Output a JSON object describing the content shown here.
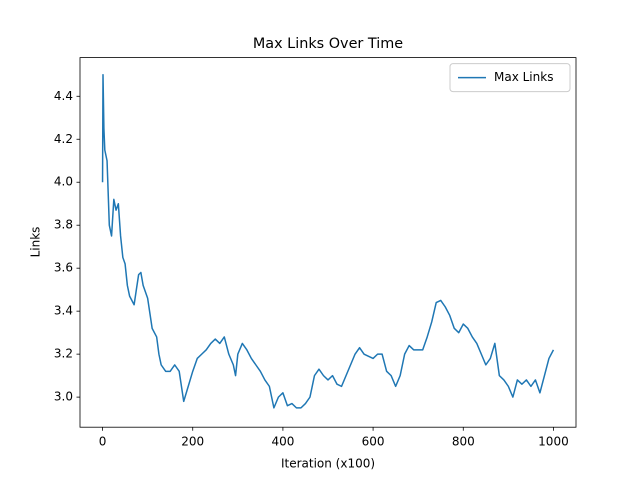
{
  "chart_data": {
    "type": "line",
    "title": "Max Links Over Time",
    "xlabel": "Iteration (x100)",
    "ylabel": "Links",
    "x": [
      0,
      1,
      3,
      5,
      10,
      15,
      20,
      25,
      30,
      35,
      40,
      45,
      50,
      55,
      60,
      70,
      75,
      80,
      85,
      90,
      100,
      110,
      120,
      125,
      130,
      140,
      150,
      160,
      170,
      175,
      180,
      190,
      200,
      210,
      220,
      230,
      240,
      250,
      260,
      270,
      280,
      290,
      295,
      300,
      310,
      320,
      330,
      340,
      350,
      360,
      370,
      380,
      390,
      400,
      410,
      420,
      430,
      440,
      450,
      460,
      470,
      480,
      490,
      500,
      510,
      520,
      530,
      540,
      550,
      560,
      570,
      580,
      590,
      600,
      610,
      620,
      630,
      640,
      650,
      660,
      670,
      680,
      690,
      700,
      710,
      720,
      730,
      740,
      750,
      760,
      770,
      780,
      790,
      800,
      810,
      820,
      830,
      840,
      850,
      860,
      870,
      880,
      890,
      900,
      910,
      920,
      930,
      940,
      950,
      960,
      970,
      980,
      990,
      1000
    ],
    "series": [
      {
        "name": "Max Links",
        "color": "#1f77b4",
        "values": [
          4.0,
          4.5,
          4.25,
          4.15,
          4.1,
          3.8,
          3.75,
          3.92,
          3.87,
          3.9,
          3.75,
          3.65,
          3.62,
          3.52,
          3.47,
          3.43,
          3.5,
          3.57,
          3.58,
          3.52,
          3.46,
          3.32,
          3.28,
          3.2,
          3.15,
          3.12,
          3.12,
          3.15,
          3.12,
          3.05,
          2.98,
          3.05,
          3.12,
          3.18,
          3.2,
          3.22,
          3.25,
          3.27,
          3.25,
          3.28,
          3.2,
          3.15,
          3.1,
          3.2,
          3.25,
          3.22,
          3.18,
          3.15,
          3.12,
          3.08,
          3.05,
          2.95,
          3.0,
          3.02,
          2.96,
          2.97,
          2.95,
          2.95,
          2.97,
          3.0,
          3.1,
          3.13,
          3.1,
          3.08,
          3.1,
          3.06,
          3.05,
          3.1,
          3.15,
          3.2,
          3.23,
          3.2,
          3.19,
          3.18,
          3.2,
          3.2,
          3.12,
          3.1,
          3.05,
          3.1,
          3.2,
          3.24,
          3.22,
          3.22,
          3.22,
          3.28,
          3.35,
          3.44,
          3.45,
          3.42,
          3.38,
          3.32,
          3.3,
          3.34,
          3.32,
          3.28,
          3.25,
          3.2,
          3.15,
          3.18,
          3.25,
          3.1,
          3.08,
          3.05,
          3.0,
          3.08,
          3.06,
          3.08,
          3.05,
          3.08,
          3.02,
          3.1,
          3.18,
          3.22
        ]
      }
    ],
    "xlim": [
      -50,
      1050
    ],
    "ylim": [
      2.86,
      4.58
    ],
    "xticks": [
      0,
      200,
      400,
      600,
      800,
      1000
    ],
    "yticks": [
      {
        "value": 3,
        "label": "3.0"
      },
      3.2,
      3.4,
      3.6,
      3.8,
      {
        "value": 4,
        "label": "4.0"
      },
      4.2,
      4.4
    ],
    "legend": "upper right"
  }
}
